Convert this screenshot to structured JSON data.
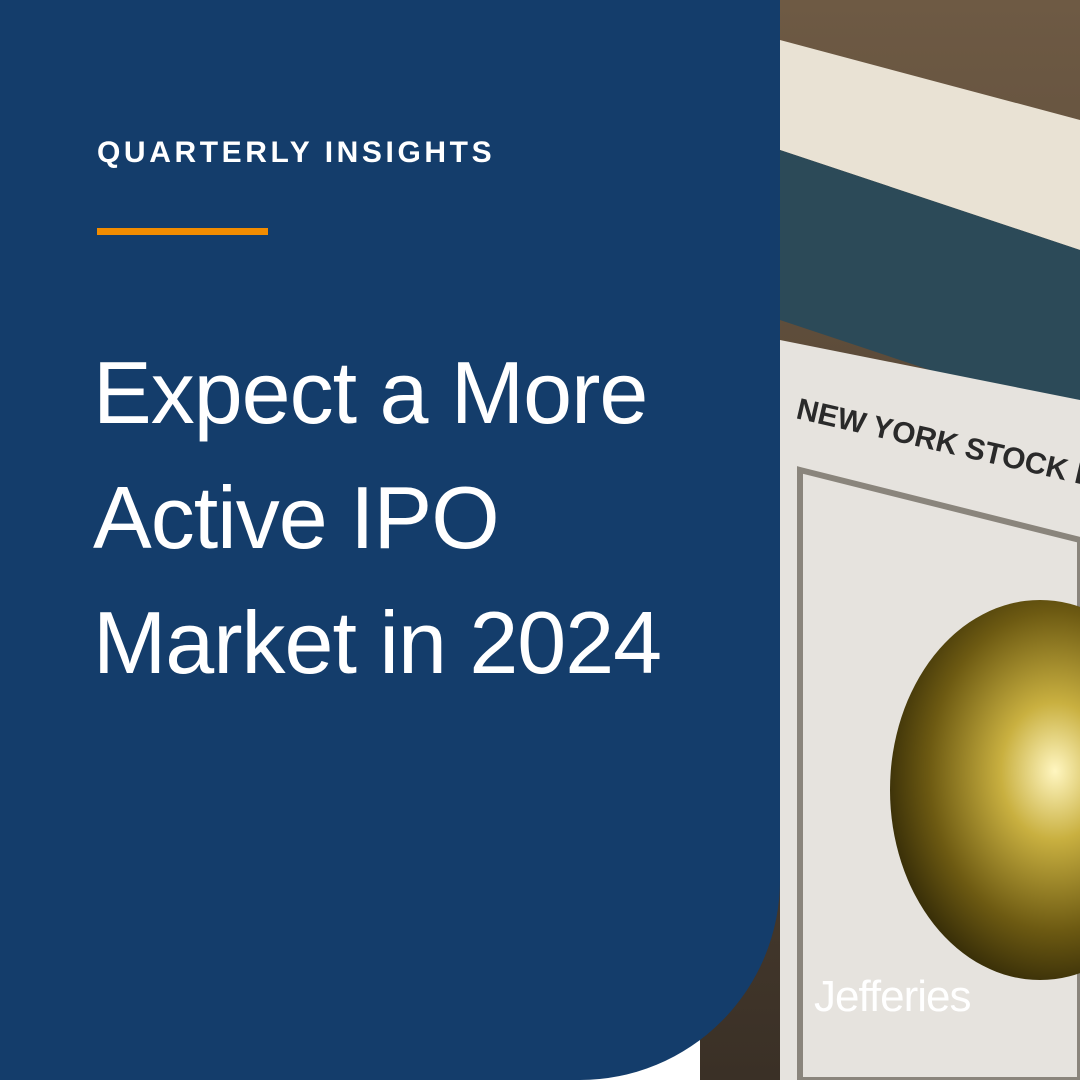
{
  "eyebrow": "QUARTERLY INSIGHTS",
  "title": {
    "lines": [
      "Expect a More",
      "Active IPO",
      "Market in 2024"
    ]
  },
  "photo": {
    "sign_text": "NEW YORK STOCK E"
  },
  "brand": "Jefferies"
}
